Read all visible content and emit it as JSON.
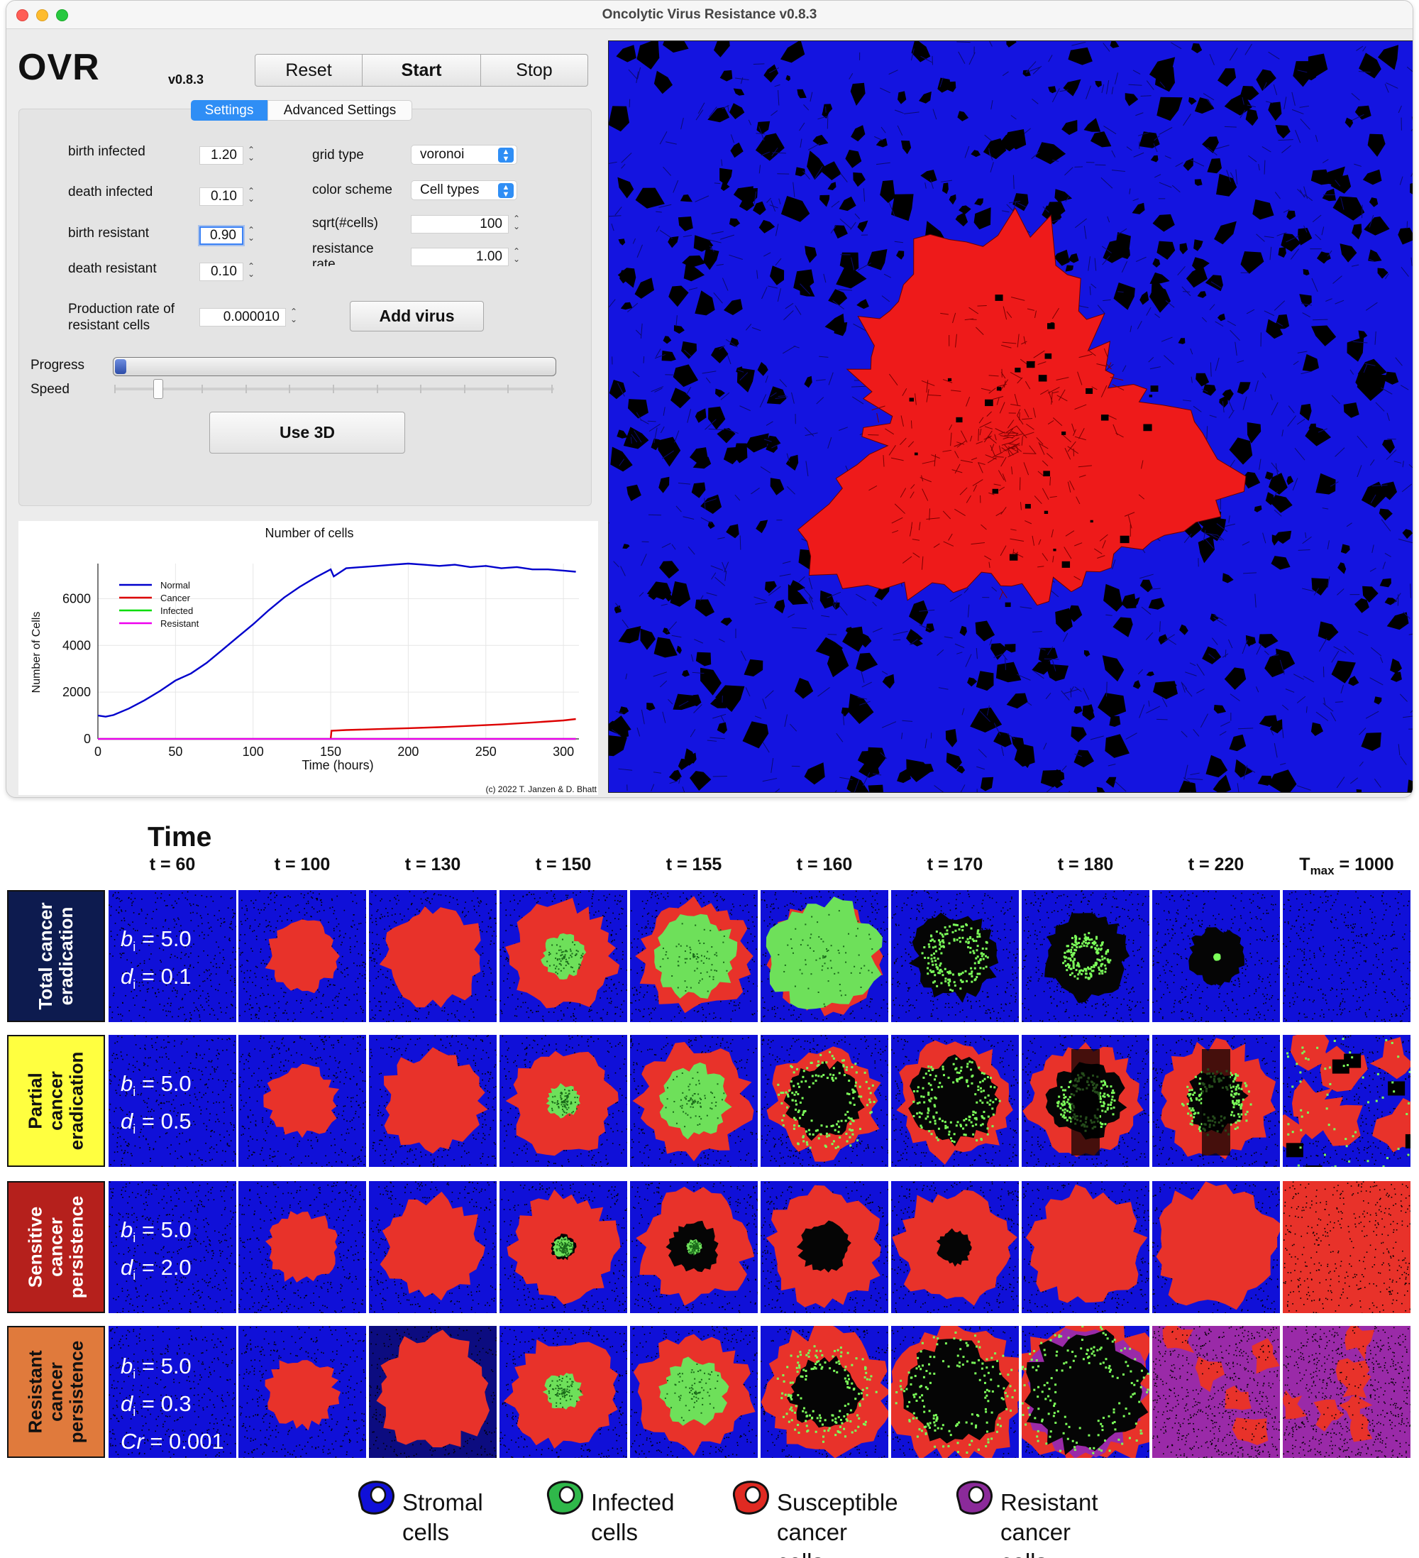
{
  "window": {
    "title": "Oncolytic Virus Resistance v0.8.3",
    "logo": "OVR",
    "version": "v0.8.3"
  },
  "toolbar": {
    "reset_label": "Reset",
    "start_label": "Start",
    "stop_label": "Stop"
  },
  "tabs": {
    "settings": "Settings",
    "advanced": "Advanced Settings"
  },
  "settings": {
    "birth_infected_label": "birth infected",
    "birth_infected_value": "1.20",
    "death_infected_label": "death infected",
    "death_infected_value": "0.10",
    "birth_resistant_label": "birth resistant",
    "birth_resistant_value": "0.90",
    "death_resistant_label": "death resistant",
    "death_resistant_value": "0.10",
    "production_rate_label_1": "Production rate  of",
    "production_rate_label_2": "resistant cells",
    "production_rate_value": "0.000010",
    "grid_type_label": "grid type",
    "grid_type_value": "voronoi",
    "color_scheme_label": "color scheme",
    "color_scheme_value": "Cell types",
    "sqrt_cells_label": "sqrt(#cells)",
    "sqrt_cells_value": "100",
    "resistance_rate_label_1": "resistance",
    "resistance_rate_label_2": "rate",
    "resistance_rate_value": "1.00",
    "add_virus_label": "Add virus",
    "progress_label": "Progress",
    "progress_fraction": 0.02,
    "speed_label": "Speed",
    "speed_fraction": 0.1,
    "use3d_label": "Use 3D"
  },
  "chart_data": {
    "type": "line",
    "title": "Number of cells",
    "xlabel": "Time (hours)",
    "ylabel": "Number of Cells",
    "xlim": [
      0,
      310
    ],
    "ylim": [
      0,
      7500
    ],
    "xticks": [
      "0",
      "50",
      "100",
      "150",
      "200",
      "250",
      "300"
    ],
    "yticks": [
      "0",
      "2000",
      "4000",
      "6000"
    ],
    "legend_position": "top-left",
    "grid": true,
    "series": [
      {
        "name": "Normal",
        "color": "#0000cc",
        "x": [
          0,
          5,
          10,
          20,
          30,
          40,
          50,
          60,
          70,
          80,
          90,
          100,
          110,
          120,
          130,
          140,
          150,
          152,
          160,
          170,
          180,
          190,
          200,
          210,
          220,
          230,
          240,
          250,
          260,
          270,
          280,
          290,
          300,
          308
        ],
        "y": [
          1000,
          950,
          1020,
          1300,
          1650,
          2050,
          2500,
          2800,
          3250,
          3800,
          4350,
          4900,
          5500,
          6050,
          6500,
          6900,
          7250,
          6950,
          7300,
          7350,
          7400,
          7450,
          7500,
          7450,
          7400,
          7450,
          7350,
          7400,
          7300,
          7350,
          7250,
          7250,
          7200,
          7150
        ]
      },
      {
        "name": "Cancer",
        "color": "#dd0000",
        "x": [
          150,
          150.5,
          160,
          180,
          200,
          220,
          240,
          260,
          280,
          300,
          308
        ],
        "y": [
          0,
          350,
          380,
          420,
          460,
          500,
          560,
          620,
          700,
          790,
          850
        ]
      },
      {
        "name": "Infected",
        "color": "#00dd00",
        "x": [
          0,
          308
        ],
        "y": [
          0,
          0
        ]
      },
      {
        "name": "Resistant",
        "color": "#ee00ee",
        "x": [
          0,
          308
        ],
        "y": [
          0,
          0
        ]
      }
    ]
  },
  "copyright": "(c) 2022 T. Janzen & D. Bhatt",
  "figure": {
    "time_title": "Time",
    "columns": [
      "t = 60",
      "t = 100",
      "t = 130",
      "t = 150",
      "t = 155",
      "t = 160",
      "t = 170",
      "t = 180",
      "t = 220"
    ],
    "last_column_prefix": "T",
    "last_column_sub": "max",
    "last_column_suffix": " = 1000",
    "rows": [
      {
        "label_1": "Total cancer",
        "label_2": "eradication",
        "color": "#0d1b4f",
        "text_color": "#ffffff",
        "b_value": " = 5.0",
        "d_value": " = 0.1"
      },
      {
        "label_1": "Partial",
        "label_2": "cancer",
        "label_3": "eradication",
        "color": "#ffff40",
        "text_color": "#111111",
        "b_value": " = 5.0",
        "d_value": " = 0.5"
      },
      {
        "label_1": "Sensitive",
        "label_2": "cancer",
        "label_3": "persistence",
        "color": "#b5201c",
        "text_color": "#ffffff",
        "b_value": " = 5.0",
        "d_value": " = 2.0"
      },
      {
        "label_1": "Resistant",
        "label_2": "cancer",
        "label_3": "persistence",
        "color": "#e07a3c",
        "text_color": "#111111",
        "b_value": " = 5.0",
        "d_value": " = 0.3",
        "cr_label": "Cr",
        "cr_value": " = 0.001"
      }
    ],
    "param_b": "b",
    "param_d": "d",
    "param_sub": "i",
    "legend": [
      {
        "line1": "Stromal",
        "line2": "cells",
        "color": "#1010d8"
      },
      {
        "line1": "Infected",
        "line2": "cells",
        "color": "#2fb84a"
      },
      {
        "line1": "Susceptible",
        "line2": "cancer cells",
        "color": "#e02a22"
      },
      {
        "line1": "Resistant",
        "line2": "cancer cells",
        "color": "#8b2a9a"
      }
    ]
  }
}
